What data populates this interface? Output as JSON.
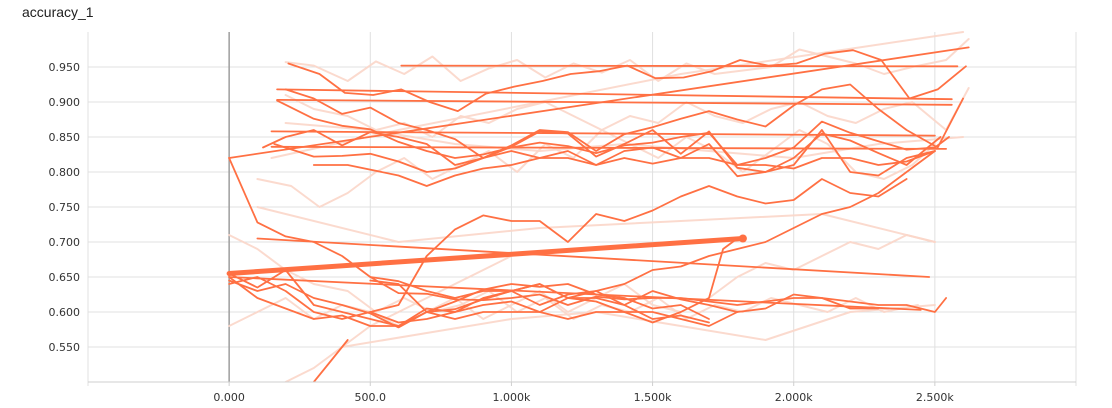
{
  "chart_data": {
    "type": "line",
    "title": "accuracy_1",
    "xlabel": "",
    "ylabel": "",
    "xlim": [
      -500,
      3000
    ],
    "ylim": [
      0.5,
      1.0
    ],
    "x_ticks": [
      0,
      500,
      1000,
      1500,
      2000,
      2500
    ],
    "x_tick_labels": [
      "0.000",
      "500.0",
      "1.000k",
      "1.500k",
      "2.000k",
      "2.500k"
    ],
    "y_ticks": [
      0.55,
      0.6,
      0.65,
      0.7,
      0.75,
      0.8,
      0.85,
      0.9,
      0.95
    ],
    "y_tick_labels": [
      "0.550",
      "0.600",
      "0.650",
      "0.700",
      "0.750",
      "0.800",
      "0.850",
      "0.900",
      "0.950"
    ],
    "grid": true,
    "colors": {
      "series": "#ff7043",
      "raw": "#fbd6c9",
      "grid": "#e0e0e0",
      "zero_line": "#9e9e9e",
      "axis": "#cfcfcf"
    },
    "raw_series": [
      {
        "x": [
          200,
          300,
          420,
          520,
          620,
          720,
          820,
          920,
          1020,
          1120,
          1220,
          1320,
          1420,
          1520,
          1620,
          1720,
          1820,
          1920,
          2020,
          2120,
          2220,
          2320,
          2420,
          2540,
          2620
        ],
        "y": [
          0.957,
          0.952,
          0.93,
          0.958,
          0.94,
          0.965,
          0.93,
          0.948,
          0.96,
          0.935,
          0.955,
          0.942,
          0.96,
          0.93,
          0.955,
          0.94,
          0.945,
          0.95,
          0.975,
          0.965,
          0.955,
          0.94,
          0.95,
          0.96,
          0.99
        ]
      },
      {
        "x": [
          200,
          300,
          420,
          520,
          620,
          720,
          820,
          920,
          1020,
          1120,
          1220,
          1320,
          1420,
          1520,
          1620,
          1720,
          1820,
          1920,
          2020,
          2120,
          2220,
          2320,
          2420,
          2540,
          2620
        ],
        "y": [
          0.91,
          0.89,
          0.88,
          0.86,
          0.87,
          0.85,
          0.88,
          0.87,
          0.89,
          0.9,
          0.88,
          0.86,
          0.88,
          0.87,
          0.9,
          0.88,
          0.87,
          0.89,
          0.9,
          0.88,
          0.87,
          0.89,
          0.9,
          0.86,
          0.92
        ]
      },
      {
        "x": [
          100,
          220,
          320,
          420,
          520,
          620,
          720,
          820,
          920,
          1020,
          1120,
          1220,
          1320,
          1420,
          1520,
          1620,
          1720,
          1820,
          1920,
          2020,
          2120,
          2220,
          2320,
          2420,
          2500
        ],
        "y": [
          0.79,
          0.78,
          0.75,
          0.77,
          0.8,
          0.82,
          0.79,
          0.81,
          0.83,
          0.8,
          0.84,
          0.82,
          0.86,
          0.84,
          0.82,
          0.85,
          0.83,
          0.8,
          0.83,
          0.86,
          0.84,
          0.8,
          0.79,
          0.81,
          0.84
        ]
      },
      {
        "x": [
          0,
          100,
          200,
          300,
          420,
          520,
          620,
          720,
          820,
          920,
          1020,
          1120,
          1220,
          1320,
          1420,
          1520,
          1620,
          1720,
          1820,
          1920,
          2020,
          2120,
          2220,
          2320,
          2440
        ],
        "y": [
          0.71,
          0.69,
          0.66,
          0.64,
          0.63,
          0.6,
          0.62,
          0.6,
          0.61,
          0.63,
          0.6,
          0.62,
          0.59,
          0.61,
          0.6,
          0.62,
          0.59,
          0.61,
          0.6,
          0.62,
          0.61,
          0.6,
          0.62,
          0.6,
          0.61
        ]
      },
      {
        "x": [
          0,
          100,
          200,
          300,
          400,
          500,
          600,
          700,
          800,
          900,
          1000,
          1100,
          1200,
          1300,
          1400,
          1500,
          1600,
          1700,
          1800,
          1900,
          2000,
          2100,
          2200,
          2300,
          2400,
          2500
        ],
        "y": [
          0.58,
          0.6,
          0.62,
          0.59,
          0.61,
          0.6,
          0.58,
          0.6,
          0.62,
          0.59,
          0.61,
          0.63,
          0.6,
          0.62,
          0.64,
          0.61,
          0.6,
          0.62,
          0.65,
          0.67,
          0.66,
          0.68,
          0.7,
          0.69,
          0.71,
          0.7
        ]
      },
      {
        "x": [
          200,
          300,
          400,
          500,
          600,
          700,
          800,
          900,
          1000
        ],
        "y": [
          0.5,
          0.52,
          0.55,
          0.58,
          0.6,
          0.62,
          0.64,
          0.66,
          0.68
        ]
      },
      {
        "x": [
          150,
          600,
          1100,
          1600,
          2100,
          2600
        ],
        "y": [
          0.82,
          0.86,
          0.9,
          0.94,
          0.97,
          1.0
        ]
      },
      {
        "x": [
          100,
          600,
          1100,
          1600,
          2100,
          2500
        ],
        "y": [
          0.75,
          0.7,
          0.72,
          0.73,
          0.74,
          0.7
        ]
      },
      {
        "x": [
          200,
          500,
          800,
          1100,
          1400,
          1700,
          2000,
          2300,
          2600
        ],
        "y": [
          0.87,
          0.86,
          0.84,
          0.83,
          0.84,
          0.83,
          0.82,
          0.84,
          0.85
        ]
      },
      {
        "x": [
          400,
          700,
          1000,
          1300,
          1600,
          1900,
          2200,
          2500
        ],
        "y": [
          0.55,
          0.57,
          0.59,
          0.6,
          0.58,
          0.56,
          0.6,
          0.61
        ]
      }
    ],
    "series": [
      {
        "x": [
          210,
          320,
          410,
          510,
          610,
          710,
          810,
          910,
          1010,
          1110,
          1210,
          1310,
          1410,
          1510,
          1610,
          1710,
          1810,
          1910,
          2010,
          2110,
          2210,
          2310,
          2410,
          2510,
          2610
        ],
        "y": [
          0.955,
          0.94,
          0.913,
          0.91,
          0.918,
          0.9,
          0.887,
          0.912,
          0.922,
          0.93,
          0.94,
          0.944,
          0.952,
          0.934,
          0.935,
          0.944,
          0.96,
          0.952,
          0.955,
          0.969,
          0.974,
          0.96,
          0.905,
          0.918,
          0.951
        ]
      },
      {
        "x": [
          610,
          2580
        ],
        "y": [
          0.952,
          0.951
        ]
      },
      {
        "x": [
          200,
          300,
          400,
          500,
          600,
          700,
          800,
          900,
          1000,
          1100,
          1200,
          1300,
          1400,
          1500,
          1600,
          1700,
          1800,
          1900,
          2000,
          2100,
          2200,
          2300,
          2400,
          2510,
          2600
        ],
        "y": [
          0.918,
          0.905,
          0.883,
          0.892,
          0.87,
          0.86,
          0.847,
          0.82,
          0.838,
          0.86,
          0.857,
          0.83,
          0.854,
          0.864,
          0.876,
          0.887,
          0.875,
          0.865,
          0.895,
          0.918,
          0.925,
          0.89,
          0.86,
          0.835,
          0.905
        ]
      },
      {
        "x": [
          170,
          2560
        ],
        "y": [
          0.918,
          0.904
        ]
      },
      {
        "x": [
          170,
          300,
          400,
          500,
          600,
          700,
          800,
          900,
          1000,
          1100,
          1200,
          1300,
          1400,
          1500,
          1600,
          1700,
          1800,
          1900,
          2000,
          2100,
          2200,
          2300,
          2400,
          2500,
          2550
        ],
        "y": [
          0.902,
          0.876,
          0.866,
          0.861,
          0.843,
          0.83,
          0.82,
          0.825,
          0.835,
          0.842,
          0.837,
          0.827,
          0.838,
          0.842,
          0.85,
          0.856,
          0.81,
          0.82,
          0.835,
          0.872,
          0.856,
          0.844,
          0.832,
          0.835,
          0.85
        ]
      },
      {
        "x": [
          170,
          2560
        ],
        "y": [
          0.903,
          0.896
        ]
      },
      {
        "x": [
          120,
          200,
          300,
          400,
          500,
          600,
          700,
          800,
          900,
          1000,
          1100,
          1200,
          1300,
          1400,
          1500,
          1600,
          1700,
          1800,
          1900,
          2000,
          2100,
          2200,
          2300,
          2400,
          2520
        ],
        "y": [
          0.835,
          0.85,
          0.86,
          0.838,
          0.857,
          0.85,
          0.84,
          0.81,
          0.82,
          0.836,
          0.858,
          0.855,
          0.822,
          0.84,
          0.86,
          0.826,
          0.858,
          0.806,
          0.8,
          0.82,
          0.855,
          0.845,
          0.827,
          0.81,
          0.85
        ]
      },
      {
        "x": [
          150,
          2500
        ],
        "y": [
          0.858,
          0.852
        ]
      },
      {
        "x": [
          160,
          300,
          400,
          500,
          600,
          700,
          800,
          900,
          1000,
          1100,
          1200,
          1300,
          1400,
          1500,
          1600,
          1700,
          1800,
          1900,
          2000,
          2100,
          2200,
          2300,
          2400,
          2500
        ],
        "y": [
          0.84,
          0.822,
          0.823,
          0.826,
          0.815,
          0.8,
          0.805,
          0.82,
          0.83,
          0.82,
          0.83,
          0.81,
          0.83,
          0.835,
          0.82,
          0.84,
          0.794,
          0.8,
          0.81,
          0.86,
          0.8,
          0.795,
          0.82,
          0.83
        ]
      },
      {
        "x": [
          150,
          2540
        ],
        "y": [
          0.836,
          0.833
        ]
      },
      {
        "x": [
          300,
          420,
          600,
          700,
          800,
          900,
          1000,
          1100,
          1200,
          1300,
          1400,
          1500,
          1600,
          1700,
          1800,
          1900,
          2000,
          2100,
          2200,
          2300,
          2400,
          2500
        ],
        "y": [
          0.81,
          0.81,
          0.795,
          0.78,
          0.795,
          0.805,
          0.81,
          0.82,
          0.82,
          0.81,
          0.82,
          0.812,
          0.82,
          0.82,
          0.81,
          0.81,
          0.805,
          0.82,
          0.82,
          0.81,
          0.815,
          0.83
        ]
      },
      {
        "x": [
          0,
          2620
        ],
        "y": [
          0.82,
          0.978
        ]
      },
      {
        "x": [
          0,
          100,
          200,
          300,
          400,
          500,
          600,
          700,
          800,
          900,
          1000,
          1100,
          1200,
          1300,
          1400,
          1500,
          1600,
          1700,
          1800,
          1900,
          2000,
          2100,
          2200,
          2300,
          2400,
          2500,
          2540
        ],
        "y": [
          0.82,
          0.728,
          0.708,
          0.7,
          0.68,
          0.65,
          0.627,
          0.626,
          0.618,
          0.617,
          0.62,
          0.625,
          0.61,
          0.622,
          0.618,
          0.62,
          0.62,
          0.615,
          0.61,
          0.615,
          0.62,
          0.62,
          0.615,
          0.61,
          0.61,
          0.6,
          0.62
        ]
      },
      {
        "x": [
          100,
          2480
        ],
        "y": [
          0.705,
          0.65
        ]
      },
      {
        "x": [
          500,
          600,
          700,
          800,
          900,
          1000,
          1100,
          1200,
          1300,
          1400,
          1500,
          1600,
          1700,
          1800,
          1900,
          2000,
          2100,
          2200,
          2300,
          2400
        ],
        "y": [
          0.6,
          0.61,
          0.68,
          0.718,
          0.738,
          0.73,
          0.73,
          0.7,
          0.74,
          0.73,
          0.745,
          0.765,
          0.78,
          0.765,
          0.755,
          0.76,
          0.79,
          0.77,
          0.765,
          0.79
        ]
      },
      {
        "x": [
          500,
          600,
          700,
          800,
          900,
          1000,
          1100,
          1200,
          1300,
          1400,
          1500,
          1600,
          1700,
          1800,
          1900,
          2000,
          2100,
          2200,
          2300,
          2400,
          2500
        ],
        "y": [
          0.65,
          0.644,
          0.63,
          0.62,
          0.63,
          0.63,
          0.64,
          0.62,
          0.63,
          0.64,
          0.66,
          0.665,
          0.68,
          0.69,
          0.7,
          0.72,
          0.74,
          0.75,
          0.77,
          0.8,
          0.83
        ]
      },
      {
        "x": [
          500,
          600,
          700,
          800,
          900,
          1000,
          1100,
          1200,
          1300,
          1400,
          1500,
          1600,
          1700,
          1800,
          1900,
          2000,
          2100,
          2200,
          2300
        ],
        "y": [
          0.645,
          0.64,
          0.6,
          0.604,
          0.618,
          0.63,
          0.64,
          0.62,
          0.62,
          0.61,
          0.63,
          0.618,
          0.61,
          0.6,
          0.605,
          0.625,
          0.62,
          0.605,
          0.605
        ]
      },
      {
        "x": [
          0,
          2450
        ],
        "y": [
          0.65,
          0.603
        ]
      },
      {
        "x": [
          0,
          1820
        ],
        "y": [
          0.655,
          0.705
        ],
        "thick": true,
        "end_marker": true
      },
      {
        "x": [
          0,
          100,
          200,
          300,
          400,
          500,
          600,
          700,
          800,
          900,
          1000,
          1100,
          1200,
          1300,
          1400,
          1500,
          1600,
          1700,
          1750,
          1800
        ],
        "y": [
          0.655,
          0.635,
          0.66,
          0.61,
          0.6,
          0.59,
          0.58,
          0.6,
          0.59,
          0.6,
          0.6,
          0.6,
          0.59,
          0.6,
          0.6,
          0.585,
          0.6,
          0.62,
          0.69,
          0.705
        ]
      },
      {
        "x": [
          0,
          100,
          200,
          300,
          400,
          500,
          600,
          700,
          800,
          900,
          1000,
          1100,
          1200,
          1300,
          1400,
          1500,
          1600,
          1700,
          1800
        ],
        "y": [
          0.65,
          0.62,
          0.605,
          0.59,
          0.595,
          0.58,
          0.58,
          0.605,
          0.6,
          0.61,
          0.615,
          0.6,
          0.62,
          0.615,
          0.6,
          0.6,
          0.59,
          0.58,
          0.6
        ]
      },
      {
        "x": [
          0,
          100,
          200,
          300,
          400,
          500,
          600,
          700,
          800,
          900,
          1000,
          1100,
          1200,
          1300,
          1400,
          1500,
          1600,
          1700
        ],
        "y": [
          0.64,
          0.65,
          0.63,
          0.6,
          0.59,
          0.6,
          0.585,
          0.59,
          0.6,
          0.62,
          0.63,
          0.61,
          0.625,
          0.63,
          0.61,
          0.59,
          0.595,
          0.585
        ]
      },
      {
        "x": [
          0,
          100,
          200,
          300,
          400,
          500,
          600,
          700,
          800,
          900,
          1000,
          1100,
          1200,
          1300,
          1400,
          1500,
          1600,
          1700
        ],
        "y": [
          0.645,
          0.63,
          0.64,
          0.62,
          0.61,
          0.598,
          0.578,
          0.6,
          0.615,
          0.632,
          0.64,
          0.636,
          0.64,
          0.625,
          0.62,
          0.605,
          0.61,
          0.59
        ]
      },
      {
        "x": [
          300,
          360,
          420
        ],
        "y": [
          0.5,
          0.53,
          0.56
        ]
      }
    ]
  }
}
